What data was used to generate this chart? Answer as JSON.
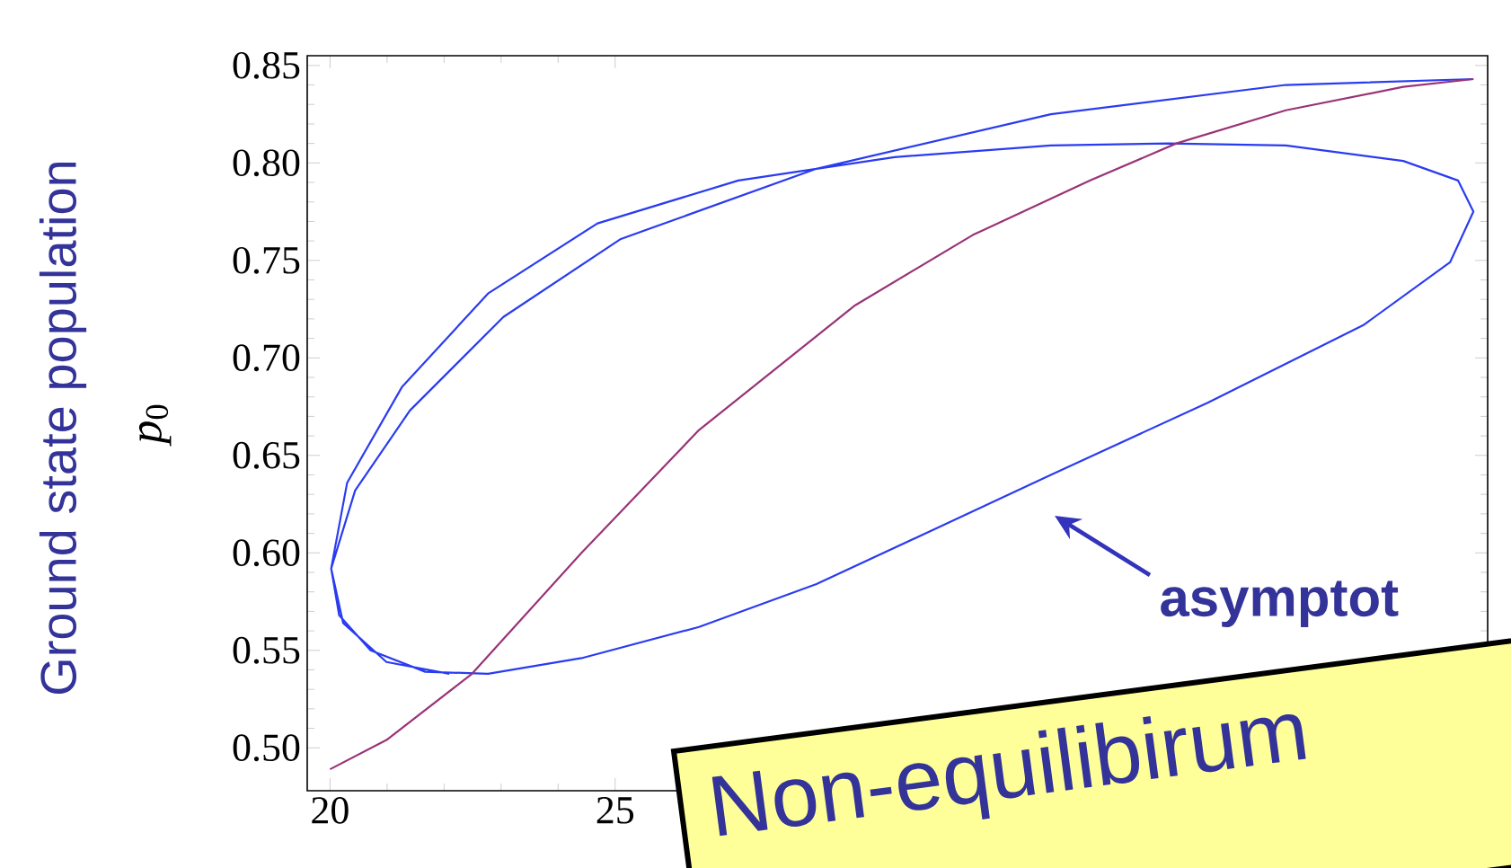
{
  "chart_data": {
    "type": "line",
    "ylabel": "*p*$_{0}$",
    "annotations": [
      "Ground state population",
      "asymptot",
      "Non-equilibirum"
    ],
    "xlim": [
      19.6,
      40.3
    ],
    "ylim": [
      0.478,
      0.855
    ],
    "xticks": [
      20,
      25
    ],
    "yticks": [
      {
        "value": 0.5,
        "label": "0.50"
      },
      0.55,
      {
        "value": 0.6,
        "label": "0.60"
      },
      0.65,
      {
        "value": 0.7,
        "label": "0.70"
      },
      0.75,
      {
        "value": 0.8,
        "label": "0.80"
      },
      0.85
    ],
    "grid": false,
    "marker": "none",
    "line_style": "solid",
    "series": [
      {
        "color": "#2a3cf0",
        "x": [
          40.05,
          36.76,
          32.64,
          28.53,
          25.1,
          23.04,
          21.4,
          20.44,
          20.02,
          20.16,
          20.71,
          21.67,
          22.77,
          24.41,
          26.47,
          28.53,
          30.59,
          32.64,
          35.39,
          38.13,
          39.64,
          40.05,
          39.78,
          38.82,
          36.76,
          34.7,
          32.64,
          29.9,
          27.16,
          24.69,
          22.77,
          21.26,
          20.3,
          20.02,
          20.23,
          20.99,
          22.09
        ],
        "values": [
          0.843,
          0.84,
          0.825,
          0.797,
          0.761,
          0.721,
          0.673,
          0.632,
          0.592,
          0.568,
          0.55,
          0.539,
          0.538,
          0.546,
          0.562,
          0.584,
          0.612,
          0.64,
          0.677,
          0.717,
          0.749,
          0.775,
          0.791,
          0.801,
          0.809,
          0.81,
          0.809,
          0.803,
          0.791,
          0.769,
          0.733,
          0.685,
          0.636,
          0.592,
          0.564,
          0.544,
          0.538
        ]
      },
      {
        "color": "#993377",
        "x": [
          20.0,
          20.99,
          22.49,
          24.41,
          26.47,
          27.84,
          29.21,
          31.27,
          33.33,
          34.84,
          36.76,
          38.82,
          40.05
        ],
        "values": [
          0.489,
          0.504,
          0.538,
          0.6,
          0.663,
          0.695,
          0.727,
          0.763,
          0.791,
          0.81,
          0.827,
          0.839,
          0.843
        ]
      }
    ]
  }
}
